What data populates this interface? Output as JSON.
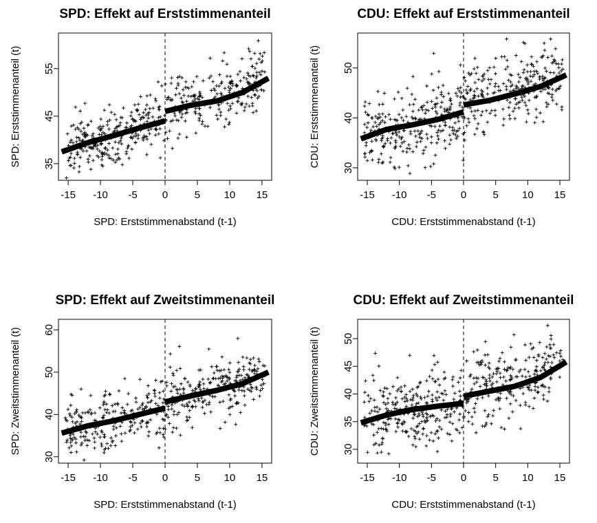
{
  "chart_data": [
    {
      "type": "scatter",
      "title": "SPD: Effekt auf Erststimmenanteil",
      "xlabel": "SPD: Erststimmenabstand (t-1)",
      "ylabel": "SPD: Erststimmenanteil (t)",
      "xlim": [
        -16.5,
        16.5
      ],
      "ylim": [
        31.5,
        62.5
      ],
      "xticks": [
        -15,
        -10,
        -5,
        0,
        5,
        10,
        15
      ],
      "yticks": [
        35,
        45,
        55
      ],
      "cutoff": 0,
      "fit": {
        "left": {
          "x": [
            -16,
            -12,
            -8,
            -4,
            0
          ],
          "y": [
            37.5,
            39.4,
            40.9,
            42.5,
            44.0
          ]
        },
        "right": {
          "x": [
            0,
            4,
            8,
            12,
            16
          ],
          "y": [
            46.0,
            47.3,
            48.2,
            50.0,
            53.0
          ]
        }
      },
      "scatter": {
        "left_mean": [
          37.5,
          44.0
        ],
        "right_mean": [
          46.0,
          53.0
        ],
        "spread": 3.2,
        "n": 520
      }
    },
    {
      "type": "scatter",
      "title": "CDU: Effekt auf Erststimmenanteil",
      "xlabel": "CDU: Erststimmenabstand (t-1)",
      "ylabel": "CDU: Erststimmenanteil (t)",
      "xlim": [
        -16.5,
        16.5
      ],
      "ylim": [
        27.5,
        57.0
      ],
      "xticks": [
        -15,
        -10,
        -5,
        0,
        5,
        10,
        15
      ],
      "yticks": [
        30,
        40,
        50
      ],
      "cutoff": 0,
      "fit": {
        "left": {
          "x": [
            -16,
            -12,
            -8,
            -4,
            0
          ],
          "y": [
            35.8,
            37.7,
            38.6,
            39.7,
            41.2
          ]
        },
        "right": {
          "x": [
            0,
            4,
            8,
            12,
            16
          ],
          "y": [
            42.6,
            43.5,
            44.8,
            46.3,
            48.6
          ]
        }
      },
      "scatter": {
        "left_mean": [
          35.8,
          41.2
        ],
        "right_mean": [
          42.6,
          48.6
        ],
        "spread": 3.6,
        "n": 540
      }
    },
    {
      "type": "scatter",
      "title": "SPD: Effekt auf Zweitstimmenanteil",
      "xlabel": "SPD: Erststimmenabstand (t-1)",
      "ylabel": "SPD: Zweitstimmenanteil (t)",
      "xlim": [
        -16.5,
        16.5
      ],
      "ylim": [
        28.5,
        62.5
      ],
      "xticks": [
        -15,
        -10,
        -5,
        0,
        5,
        10,
        15
      ],
      "yticks": [
        30,
        40,
        50,
        60
      ],
      "cutoff": 0,
      "fit": {
        "left": {
          "x": [
            -16,
            -12,
            -8,
            -4,
            0
          ],
          "y": [
            35.6,
            37.3,
            38.5,
            40.0,
            41.5
          ]
        },
        "right": {
          "x": [
            0,
            4,
            8,
            12,
            16
          ],
          "y": [
            43.0,
            44.4,
            45.7,
            47.3,
            50.0
          ]
        }
      },
      "scatter": {
        "left_mean": [
          35.6,
          41.5
        ],
        "right_mean": [
          43.0,
          50.0
        ],
        "spread": 3.5,
        "n": 520
      }
    },
    {
      "type": "scatter",
      "title": "CDU: Effekt auf Zweitstimmenanteil",
      "xlabel": "CDU: Erststimmenabstand (t-1)",
      "ylabel": "CDU: Zweitstimmenanteil (t)",
      "xlim": [
        -16.5,
        16.5
      ],
      "ylim": [
        27.5,
        53.5
      ],
      "xticks": [
        -15,
        -10,
        -5,
        0,
        5,
        10,
        15
      ],
      "yticks": [
        30,
        35,
        40,
        45,
        50
      ],
      "cutoff": 0,
      "fit": {
        "left": {
          "x": [
            -16,
            -12,
            -8,
            -4,
            0
          ],
          "y": [
            34.8,
            36.2,
            37.2,
            37.8,
            38.3
          ]
        },
        "right": {
          "x": [
            0,
            4,
            8,
            12,
            16
          ],
          "y": [
            39.6,
            40.5,
            41.4,
            43.0,
            45.8
          ]
        }
      },
      "scatter": {
        "left_mean": [
          34.8,
          38.3
        ],
        "right_mean": [
          39.6,
          45.8
        ],
        "spread": 3.6,
        "n": 540
      }
    }
  ]
}
